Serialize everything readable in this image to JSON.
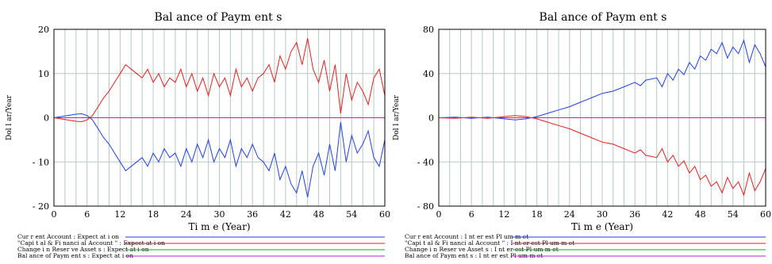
{
  "chart_data": [
    {
      "type": "line",
      "title": "Bal ance of Paym ent s",
      "xlabel": "Ti m e (Year)",
      "ylabel": "Dol l ar/Year",
      "xlim": [
        0,
        60
      ],
      "ylim": [
        -20,
        20
      ],
      "xticks": [
        0,
        6,
        12,
        18,
        24,
        30,
        36,
        42,
        48,
        54,
        60
      ],
      "yticks": [
        -20,
        -10,
        0,
        10,
        20
      ],
      "ytick_labels": [
        "- 20",
        "- 10",
        "0",
        "10",
        "20"
      ],
      "grid": true,
      "legend_position": "bottom",
      "series": [
        {
          "name": "Cur r ent Account : Expect at i on",
          "color": "#2040e0",
          "x": [
            0,
            2,
            4,
            5,
            6,
            7,
            8,
            9,
            10,
            11,
            12,
            13,
            14,
            15,
            16,
            17,
            18,
            19,
            20,
            21,
            22,
            23,
            24,
            25,
            26,
            27,
            28,
            29,
            30,
            31,
            32,
            33,
            34,
            35,
            36,
            37,
            38,
            39,
            40,
            41,
            42,
            43,
            44,
            45,
            46,
            47,
            48,
            49,
            50,
            51,
            52,
            53,
            54,
            55,
            56,
            57,
            58,
            59,
            60
          ],
          "y": [
            0,
            0.4,
            0.8,
            0.9,
            0.5,
            -0.5,
            -2.5,
            -4.5,
            -6,
            -8,
            -10,
            -12,
            -11,
            -10,
            -9,
            -11,
            -8,
            -10,
            -7,
            -9,
            -8,
            -11,
            -7,
            -10,
            -6,
            -9,
            -5,
            -10,
            -7,
            -9,
            -5,
            -11,
            -7,
            -9,
            -6,
            -9,
            -10,
            -12,
            -8,
            -14,
            -11,
            -15,
            -17,
            -12,
            -18,
            -11,
            -8,
            -13,
            -6,
            -12,
            -1,
            -10,
            -4,
            -8,
            -6,
            -3,
            -9,
            -11,
            -5
          ]
        },
        {
          "name": "\"Capi t al & Fi nanci al Account \" : Expect at i on",
          "color": "#e02020",
          "x": [
            0,
            2,
            4,
            5,
            6,
            7,
            8,
            9,
            10,
            11,
            12,
            13,
            14,
            15,
            16,
            17,
            18,
            19,
            20,
            21,
            22,
            23,
            24,
            25,
            26,
            27,
            28,
            29,
            30,
            31,
            32,
            33,
            34,
            35,
            36,
            37,
            38,
            39,
            40,
            41,
            42,
            43,
            44,
            45,
            46,
            47,
            48,
            49,
            50,
            51,
            52,
            53,
            54,
            55,
            56,
            57,
            58,
            59,
            60
          ],
          "y": [
            0,
            -0.4,
            -0.8,
            -0.9,
            -0.5,
            0.5,
            2.5,
            4.5,
            6,
            8,
            10,
            12,
            11,
            10,
            9,
            11,
            8,
            10,
            7,
            9,
            8,
            11,
            7,
            10,
            6,
            9,
            5,
            10,
            7,
            9,
            5,
            11,
            7,
            9,
            6,
            9,
            10,
            12,
            8,
            14,
            11,
            15,
            17,
            12,
            18,
            11,
            8,
            13,
            6,
            12,
            1,
            10,
            4,
            8,
            6,
            3,
            9,
            11,
            5
          ]
        },
        {
          "name": "Change i n Reser ve Asset s : Expect at i on",
          "color": "#20a020",
          "x": [
            0,
            60
          ],
          "y": [
            0,
            0
          ]
        },
        {
          "name": "Bal ance of Paym ent s : Expect at i on",
          "color": "#c020c0",
          "x": [
            0,
            60
          ],
          "y": [
            0,
            0
          ]
        }
      ]
    },
    {
      "type": "line",
      "title": "Bal ance of Paym ent s",
      "xlabel": "Ti m e (Year)",
      "ylabel": "Dol l ar/Year",
      "xlim": [
        0,
        60
      ],
      "ylim": [
        -80,
        80
      ],
      "xticks": [
        0,
        6,
        12,
        18,
        24,
        30,
        36,
        42,
        48,
        54,
        60
      ],
      "yticks": [
        -80,
        -40,
        0,
        40,
        80
      ],
      "ytick_labels": [
        "- 80",
        "- 40",
        "0",
        "40",
        "80"
      ],
      "grid": true,
      "legend_position": "bottom",
      "series": [
        {
          "name": "Cur r ent Account : I nt er est Pl um m et",
          "color": "#2040e0",
          "x": [
            0,
            3,
            6,
            9,
            12,
            14,
            16,
            18,
            20,
            22,
            24,
            26,
            28,
            30,
            32,
            34,
            36,
            37,
            38,
            40,
            41,
            42,
            43,
            44,
            45,
            46,
            47,
            48,
            49,
            50,
            51,
            52,
            53,
            54,
            55,
            56,
            57,
            58,
            59,
            60
          ],
          "y": [
            0,
            0.5,
            -0.5,
            0.5,
            -1,
            -2,
            -1,
            1,
            4,
            7,
            10,
            14,
            18,
            22,
            24,
            28,
            32,
            29,
            34,
            36,
            28,
            40,
            34,
            44,
            39,
            50,
            44,
            56,
            52,
            62,
            58,
            68,
            54,
            64,
            58,
            70,
            50,
            66,
            58,
            46
          ]
        },
        {
          "name": "\"Capi t al & Fi nanci al Account \" : I nt er est Pl um m et",
          "color": "#e02020",
          "x": [
            0,
            3,
            6,
            9,
            12,
            14,
            16,
            18,
            20,
            22,
            24,
            26,
            28,
            30,
            32,
            34,
            36,
            37,
            38,
            40,
            41,
            42,
            43,
            44,
            45,
            46,
            47,
            48,
            49,
            50,
            51,
            52,
            53,
            54,
            55,
            56,
            57,
            58,
            59,
            60
          ],
          "y": [
            0,
            -0.5,
            0.5,
            -0.5,
            1,
            2,
            1,
            -1,
            -4,
            -7,
            -10,
            -14,
            -18,
            -22,
            -24,
            -28,
            -32,
            -29,
            -34,
            -36,
            -28,
            -40,
            -34,
            -44,
            -39,
            -50,
            -44,
            -56,
            -52,
            -62,
            -58,
            -68,
            -54,
            -64,
            -58,
            -70,
            -50,
            -66,
            -58,
            -46
          ]
        },
        {
          "name": "Change i n Reser ve Asset s : I nt er est Pl um m et",
          "color": "#20a020",
          "x": [
            0,
            60
          ],
          "y": [
            0,
            0
          ]
        },
        {
          "name": "Bal ance of Paym ent s : I nt er est Pl um m et",
          "color": "#c020c0",
          "x": [
            0,
            60
          ],
          "y": [
            0,
            0
          ]
        }
      ]
    }
  ]
}
